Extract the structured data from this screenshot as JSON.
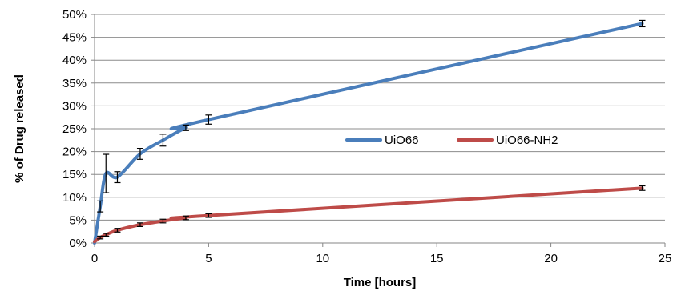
{
  "chart_data": {
    "type": "line",
    "title": "",
    "xlabel": "Time [hours]",
    "ylabel": "% of Drug released",
    "xlim": [
      0,
      25
    ],
    "ylim": [
      0,
      50
    ],
    "x_ticks": [
      0,
      5,
      10,
      15,
      20,
      25
    ],
    "y_ticks": [
      0,
      5,
      10,
      15,
      20,
      25,
      30,
      35,
      40,
      45,
      50
    ],
    "y_tick_format": "percent",
    "grid": "horizontal",
    "legend_position": "center-right",
    "series": [
      {
        "name": "UiO66",
        "color": "#4a7ebb",
        "points": [
          {
            "x": 0,
            "y": 0,
            "err": 0
          },
          {
            "x": 0.25,
            "y": 8,
            "err": 1.2
          },
          {
            "x": 0.5,
            "y": 15.2,
            "err": 4.2
          },
          {
            "x": 1,
            "y": 14.4,
            "err": 1.2
          },
          {
            "x": 2,
            "y": 19.5,
            "err": 1.2
          },
          {
            "x": 3,
            "y": 22.5,
            "err": 1.3
          },
          {
            "x": 4,
            "y": 25.2,
            "err": 0.6
          },
          {
            "x": 5,
            "y": 27,
            "err": 1.0
          },
          {
            "x": 24,
            "y": 48,
            "err": 0.7
          }
        ]
      },
      {
        "name": "UiO66-NH2",
        "color": "#be4b48",
        "points": [
          {
            "x": 0,
            "y": 0.3,
            "err": 0
          },
          {
            "x": 0.25,
            "y": 1.2,
            "err": 0.3
          },
          {
            "x": 0.5,
            "y": 1.8,
            "err": 0.3
          },
          {
            "x": 1,
            "y": 2.8,
            "err": 0.4
          },
          {
            "x": 2,
            "y": 4,
            "err": 0.4
          },
          {
            "x": 3,
            "y": 4.8,
            "err": 0.4
          },
          {
            "x": 4,
            "y": 5.5,
            "err": 0.4
          },
          {
            "x": 5,
            "y": 6,
            "err": 0.4
          },
          {
            "x": 24,
            "y": 12,
            "err": 0.5
          }
        ]
      }
    ]
  }
}
